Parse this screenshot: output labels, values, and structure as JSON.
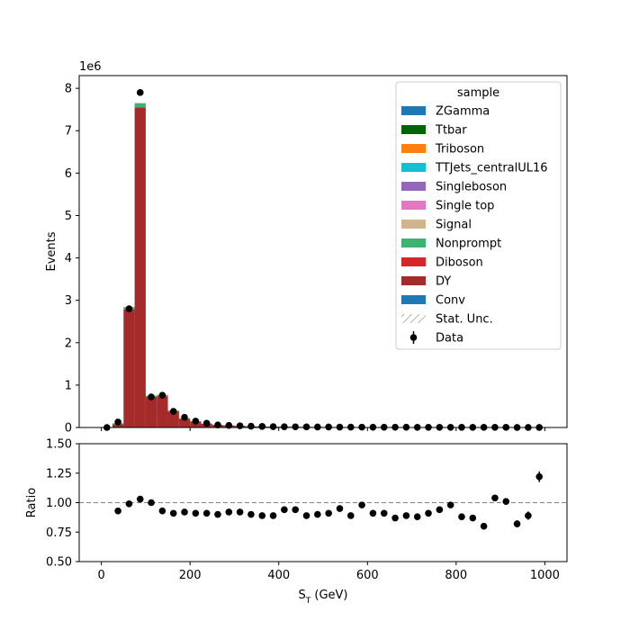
{
  "chart_data": {
    "type": "bar",
    "stacked": true,
    "xlabel": "S",
    "xlabel_sub": "T",
    "xlabel_unit": " (GeV)",
    "xlim": [
      -50,
      1050
    ],
    "main_panel": {
      "ylabel": "Events",
      "yscale_label": "1e6",
      "ylim": [
        0,
        8.3
      ],
      "yticks": [
        0,
        1,
        2,
        3,
        4,
        5,
        6,
        7,
        8
      ],
      "bin_edges": [
        0,
        25,
        50,
        75,
        100,
        125,
        150,
        175,
        200,
        225,
        250,
        275,
        300,
        325,
        350,
        375,
        400,
        425,
        450,
        475,
        500,
        525,
        550,
        575,
        600,
        625,
        650,
        675,
        700,
        725,
        750,
        775,
        800,
        825,
        850,
        875,
        900,
        925,
        950,
        975,
        1000
      ],
      "series": [
        {
          "name": "DY",
          "color": "#a52a2a",
          "values": [
            0.0,
            0.08,
            2.78,
            7.55,
            0.72,
            0.74,
            0.38,
            0.21,
            0.14,
            0.09,
            0.06,
            0.05,
            0.04,
            0.03,
            0.025,
            0.02,
            0.018,
            0.016,
            0.014,
            0.012,
            0.011,
            0.01,
            0.009,
            0.008,
            0.007,
            0.007,
            0.006,
            0.006,
            0.005,
            0.005,
            0.004,
            0.004,
            0.004,
            0.003,
            0.003,
            0.003,
            0.003,
            0.002,
            0.002,
            0.002
          ]
        },
        {
          "name": "Nonprompt",
          "color": "#3cb371",
          "values": [
            0.0,
            0.02,
            0.06,
            0.1,
            0.03,
            0.03,
            0.02,
            0.01,
            0.01,
            0.005,
            0.004,
            0.003,
            0.002,
            0.002,
            0.001,
            0.001,
            0.001,
            0.001,
            0.001,
            0.001,
            0.001,
            0.001,
            0.001,
            0.0,
            0.0,
            0.0,
            0.0,
            0.0,
            0.0,
            0.0,
            0.0,
            0.0,
            0.0,
            0.0,
            0.0,
            0.0,
            0.0,
            0.0,
            0.0,
            0.0
          ]
        }
      ],
      "data_points": {
        "name": "Data",
        "x": [
          12.5,
          37.5,
          62.5,
          87.5,
          112.5,
          137.5,
          162.5,
          187.5,
          212.5,
          237.5,
          262.5,
          287.5,
          312.5,
          337.5,
          362.5,
          387.5,
          412.5,
          437.5,
          462.5,
          487.5,
          512.5,
          537.5,
          562.5,
          587.5,
          612.5,
          637.5,
          662.5,
          687.5,
          712.5,
          737.5,
          762.5,
          787.5,
          812.5,
          837.5,
          862.5,
          887.5,
          912.5,
          937.5,
          962.5,
          987.5
        ],
        "y": [
          0.0,
          0.13,
          2.8,
          7.9,
          0.72,
          0.76,
          0.38,
          0.24,
          0.15,
          0.1,
          0.06,
          0.05,
          0.04,
          0.03,
          0.025,
          0.02,
          0.018,
          0.016,
          0.014,
          0.012,
          0.011,
          0.01,
          0.009,
          0.008,
          0.007,
          0.007,
          0.006,
          0.006,
          0.005,
          0.005,
          0.004,
          0.004,
          0.004,
          0.003,
          0.003,
          0.003,
          0.003,
          0.002,
          0.002,
          0.002
        ]
      },
      "legend": {
        "title": "sample",
        "placement": "upper right",
        "entries": [
          {
            "label": "ZGamma",
            "color": "#1f77b4",
            "kind": "patch"
          },
          {
            "label": "Ttbar",
            "color": "#006400",
            "kind": "patch"
          },
          {
            "label": "Triboson",
            "color": "#ff7f0e",
            "kind": "patch"
          },
          {
            "label": "TTJets_centralUL16",
            "color": "#17becf",
            "kind": "patch"
          },
          {
            "label": "Singleboson",
            "color": "#9467bd",
            "kind": "patch"
          },
          {
            "label": "Single top",
            "color": "#e377c2",
            "kind": "patch"
          },
          {
            "label": "Signal",
            "color": "#d2b48c",
            "kind": "patch"
          },
          {
            "label": "Nonprompt",
            "color": "#3cb371",
            "kind": "patch"
          },
          {
            "label": "Diboson",
            "color": "#d62728",
            "kind": "patch"
          },
          {
            "label": "DY",
            "color": "#a52a2a",
            "kind": "patch"
          },
          {
            "label": "Conv",
            "color": "#1f77b4",
            "kind": "patch"
          },
          {
            "label": "Stat. Unc.",
            "color": "#888888",
            "kind": "hatch"
          },
          {
            "label": "Data",
            "color": "#000000",
            "kind": "errorbar"
          }
        ]
      }
    },
    "ratio_panel": {
      "ylabel": "Ratio",
      "ylim": [
        0.5,
        1.5
      ],
      "yticks": [
        "0.50",
        "0.75",
        "1.00",
        "1.25",
        "1.50"
      ],
      "reference_line": 1.0,
      "x": [
        37.5,
        62.5,
        87.5,
        112.5,
        137.5,
        162.5,
        187.5,
        212.5,
        237.5,
        262.5,
        287.5,
        312.5,
        337.5,
        362.5,
        387.5,
        412.5,
        437.5,
        462.5,
        487.5,
        512.5,
        537.5,
        562.5,
        587.5,
        612.5,
        637.5,
        662.5,
        687.5,
        712.5,
        737.5,
        762.5,
        787.5,
        812.5,
        837.5,
        862.5,
        887.5,
        912.5,
        937.5,
        962.5,
        987.5
      ],
      "y": [
        0.93,
        0.99,
        1.03,
        1.0,
        0.93,
        0.91,
        0.92,
        0.91,
        0.91,
        0.9,
        0.92,
        0.92,
        0.9,
        0.89,
        0.89,
        0.94,
        0.94,
        0.89,
        0.9,
        0.91,
        0.95,
        0.89,
        0.98,
        0.91,
        0.91,
        0.87,
        0.89,
        0.88,
        0.91,
        0.94,
        0.98,
        0.88,
        0.87,
        0.8,
        1.04,
        1.01,
        0.82,
        0.89,
        1.22
      ],
      "yerr": [
        0.005,
        0.003,
        0.002,
        0.004,
        0.004,
        0.005,
        0.006,
        0.007,
        0.008,
        0.009,
        0.01,
        0.01,
        0.011,
        0.012,
        0.012,
        0.013,
        0.013,
        0.014,
        0.014,
        0.015,
        0.015,
        0.016,
        0.016,
        0.017,
        0.017,
        0.018,
        0.018,
        0.019,
        0.019,
        0.02,
        0.02,
        0.021,
        0.022,
        0.022,
        0.025,
        0.028,
        0.03,
        0.035,
        0.045
      ]
    },
    "xticks": [
      0,
      200,
      400,
      600,
      800,
      1000
    ]
  }
}
